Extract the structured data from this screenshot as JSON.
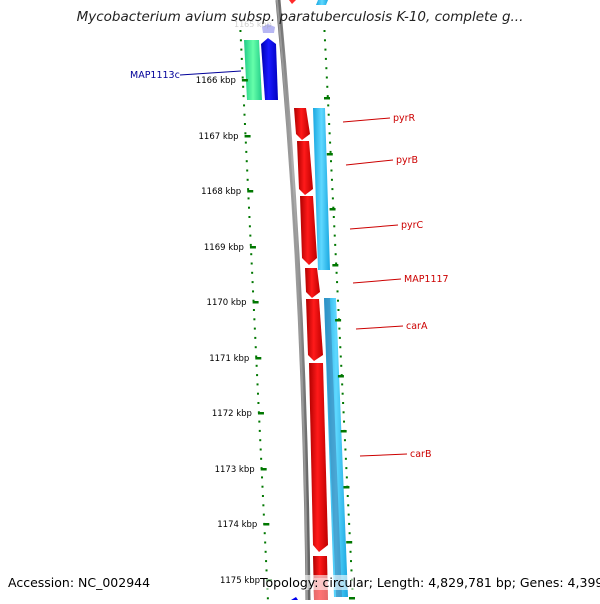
{
  "title": "Mycobacterium avium subsp. paratuberculosis K-10, complete g...",
  "footer": {
    "accession": "Accession: NC_002944",
    "summary": "Topology: circular; Length: 4,829,781 bp; Genes: 4,399"
  },
  "ticks": [
    {
      "label": "1166 kbp"
    },
    {
      "label": "1167 kbp"
    },
    {
      "label": "1168 kbp"
    },
    {
      "label": "1169 kbp"
    },
    {
      "label": "1170 kbp"
    },
    {
      "label": "1171 kbp"
    },
    {
      "label": "1172 kbp"
    },
    {
      "label": "1173 kbp"
    },
    {
      "label": "1174 kbp"
    },
    {
      "label": "1175 kbp"
    }
  ],
  "genes": [
    {
      "name": "MAP1113c",
      "color": "#000099"
    },
    {
      "name": "pyrR",
      "color": "#cc0000"
    },
    {
      "name": "pyrB",
      "color": "#cc0000"
    },
    {
      "name": "pyrC",
      "color": "#cc0000"
    },
    {
      "name": "MAP1117",
      "color": "#cc0000"
    },
    {
      "name": "carA",
      "color": "#cc0000"
    },
    {
      "name": "carB",
      "color": "#cc0000"
    }
  ],
  "colors": {
    "forward_cds": "#ff0000",
    "reverse_cds": "#0000ee",
    "forward_cog": "#33ccff",
    "reverse_cog": "#33ee99",
    "backbone": "#808080",
    "tick_marks": "#007700"
  }
}
